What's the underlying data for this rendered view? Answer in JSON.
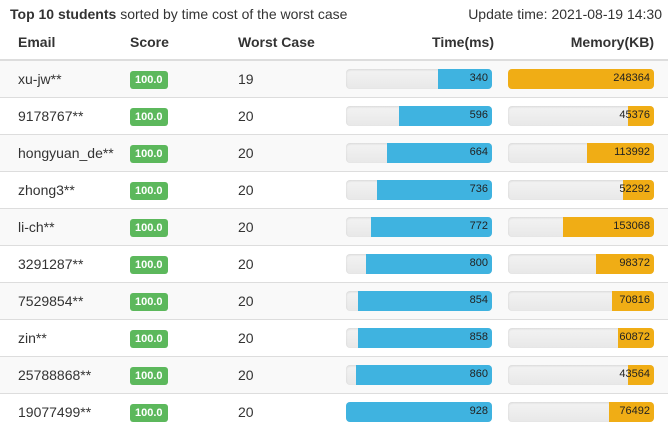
{
  "header": {
    "title_bold": "Top 10 students",
    "title_rest": " sorted by time cost of the worst case",
    "update_label": "Update time: 2021-08-19 14:30"
  },
  "columns": {
    "email": "Email",
    "score": "Score",
    "worst_case": "Worst Case",
    "time": "Time(ms)",
    "memory": "Memory(KB)"
  },
  "colors": {
    "score_badge": "#5cb85c",
    "time_bar": "#3fb3e0",
    "memory_bar": "#f0ad15"
  },
  "rows": [
    {
      "email": "xu-jw**",
      "score": "100.0",
      "worst_case": "19",
      "time": 340,
      "memory": 248364,
      "time_fraction": 0.37,
      "memory_fraction": 1.0
    },
    {
      "email": "9178767**",
      "score": "100.0",
      "worst_case": "20",
      "time": 596,
      "memory": 45376,
      "time_fraction": 0.64,
      "memory_fraction": 0.18
    },
    {
      "email": "hongyuan_de**",
      "score": "100.0",
      "worst_case": "20",
      "time": 664,
      "memory": 113992,
      "time_fraction": 0.72,
      "memory_fraction": 0.46
    },
    {
      "email": "zhong3**",
      "score": "100.0",
      "worst_case": "20",
      "time": 736,
      "memory": 52292,
      "time_fraction": 0.79,
      "memory_fraction": 0.21
    },
    {
      "email": "li-ch**",
      "score": "100.0",
      "worst_case": "20",
      "time": 772,
      "memory": 153068,
      "time_fraction": 0.83,
      "memory_fraction": 0.62
    },
    {
      "email": "3291287**",
      "score": "100.0",
      "worst_case": "20",
      "time": 800,
      "memory": 98372,
      "time_fraction": 0.86,
      "memory_fraction": 0.4
    },
    {
      "email": "7529854**",
      "score": "100.0",
      "worst_case": "20",
      "time": 854,
      "memory": 70816,
      "time_fraction": 0.92,
      "memory_fraction": 0.29
    },
    {
      "email": "zin**",
      "score": "100.0",
      "worst_case": "20",
      "time": 858,
      "memory": 60872,
      "time_fraction": 0.92,
      "memory_fraction": 0.25
    },
    {
      "email": "25788868**",
      "score": "100.0",
      "worst_case": "20",
      "time": 860,
      "memory": 43564,
      "time_fraction": 0.93,
      "memory_fraction": 0.18
    },
    {
      "email": "19077499**",
      "score": "100.0",
      "worst_case": "20",
      "time": 928,
      "memory": 76492,
      "time_fraction": 1.0,
      "memory_fraction": 0.31
    }
  ]
}
